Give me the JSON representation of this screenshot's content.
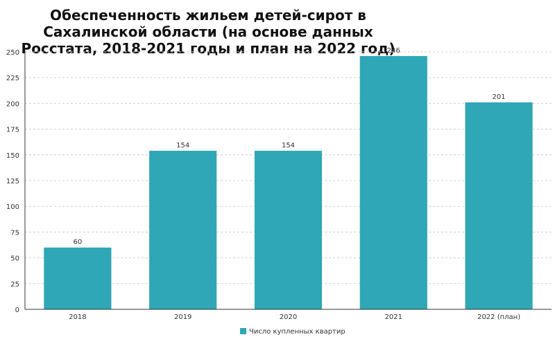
{
  "chart_data": {
    "type": "bar",
    "title_lines": [
      "Обеспеченность жильем детей-сирот в",
      "Сахалинской области (на основе данных",
      "Росстата, 2018-2021 годы и план на 2022 год)"
    ],
    "categories": [
      "2018",
      "2019",
      "2020",
      "2021",
      "2022 (план)"
    ],
    "series": [
      {
        "name": "Число купленных квартир",
        "values": [
          60,
          154,
          154,
          246,
          201
        ]
      }
    ],
    "ylim": [
      0,
      250
    ],
    "yticks": [
      0,
      25,
      50,
      75,
      100,
      125,
      150,
      175,
      200,
      225,
      250
    ],
    "grid": true,
    "legend": "bottom",
    "data_labels": true,
    "colors": {
      "bar": "#2fa7b6",
      "grid": "#d0d0d0",
      "axis": "#333333",
      "text": "#333333"
    }
  }
}
